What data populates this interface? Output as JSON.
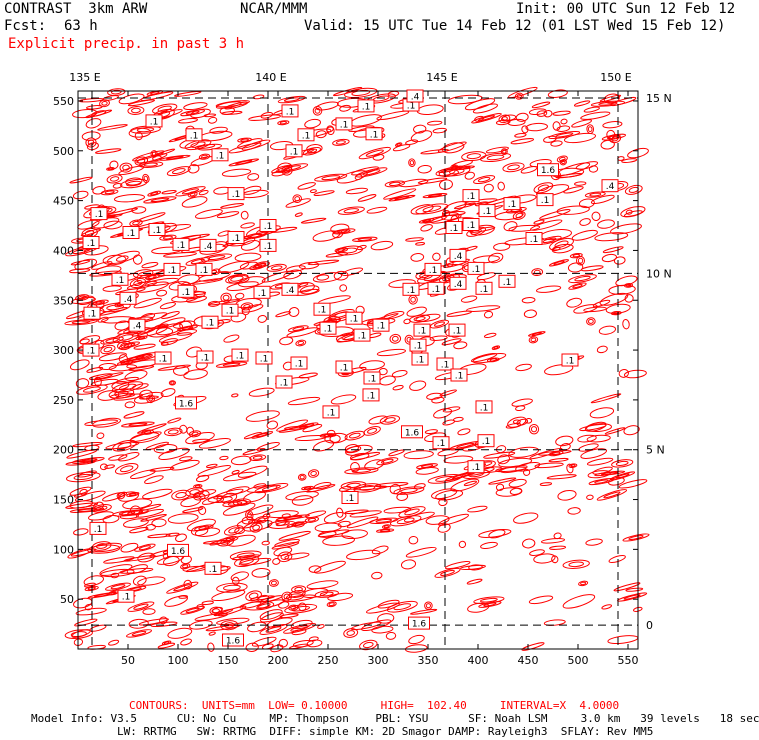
{
  "header": {
    "model": "CONTRAST  3km ARW",
    "center": "NCAR/MMM",
    "init": "Init: 00 UTC Sun 12 Feb 12",
    "fcst_label": "Fcst:",
    "fcst_value": "63 h",
    "valid": "Valid: 15 UTC Tue 14 Feb 12 (01 LST Wed 15 Feb 12)",
    "field": "Explicit precip. in past 3 h"
  },
  "footer": {
    "contours": "CONTOURS:  UNITS=mm  LOW= 0.10000     HIGH=  102.40     INTERVAL=X  4.0000",
    "model_info_line1": "Model Info: V3.5      CU: No Cu     MP: Thompson    PBL: YSU      SF: Noah LSM     3.0 km   39 levels   18 sec",
    "model_info_line2": "LW: RRTMG   SW: RRTMG  DIFF: simple KM: 2D Smagor DAMP: Rayleigh3  SFLAY: Rev MM5"
  },
  "colors": {
    "contour": "#ff0000",
    "text": "#000000",
    "background": "#ffffff"
  },
  "chart_data": {
    "type": "contour-map",
    "title": "Explicit precip. in past 3 h",
    "units": "mm",
    "contour_levels": {
      "low": 0.1,
      "high": 102.4,
      "interval": "X 4.0"
    },
    "grid_x_range": [
      0,
      560
    ],
    "grid_y_range": [
      0,
      560
    ],
    "x_ticks": [
      50,
      100,
      150,
      200,
      250,
      300,
      350,
      400,
      450,
      500,
      550
    ],
    "y_ticks": [
      50,
      100,
      150,
      200,
      250,
      300,
      350,
      400,
      450,
      500,
      550
    ],
    "lon_labels": [
      {
        "label": "135 E",
        "grid_x": 7
      },
      {
        "label": "140 E",
        "grid_x": 193
      },
      {
        "label": "145 E",
        "grid_x": 364
      },
      {
        "label": "150 E",
        "grid_x": 538
      }
    ],
    "lat_labels": [
      {
        "label": "15 N",
        "grid_y": 553
      },
      {
        "label": "10 N",
        "grid_y": 377
      },
      {
        "label": "5 N",
        "grid_y": 200
      },
      {
        "label": "0",
        "grid_y": 24
      }
    ],
    "meridians_grid_x": [
      14,
      190,
      367,
      540
    ],
    "parallels_grid_y": [
      24,
      200,
      377,
      553
    ],
    "contour_labels": [
      {
        "text": ".1",
        "gx": 76,
        "gy": 530
      },
      {
        "text": ".1",
        "gx": 116,
        "gy": 516
      },
      {
        "text": ".1",
        "gx": 142,
        "gy": 496
      },
      {
        "text": ".1",
        "gx": 158,
        "gy": 457
      },
      {
        "text": ".1",
        "gx": 212,
        "gy": 540
      },
      {
        "text": ".1",
        "gx": 228,
        "gy": 516
      },
      {
        "text": ".1",
        "gx": 216,
        "gy": 500
      },
      {
        "text": ".1",
        "gx": 266,
        "gy": 527
      },
      {
        "text": ".1",
        "gx": 296,
        "gy": 517
      },
      {
        "text": ".1",
        "gx": 288,
        "gy": 545
      },
      {
        "text": ".1",
        "gx": 333,
        "gy": 546
      },
      {
        "text": ".4",
        "gx": 337,
        "gy": 555
      },
      {
        "text": ".1",
        "gx": 21,
        "gy": 437
      },
      {
        "text": ".1",
        "gx": 13,
        "gy": 408
      },
      {
        "text": ".1",
        "gx": 79,
        "gy": 421
      },
      {
        "text": ".1",
        "gx": 103,
        "gy": 406
      },
      {
        "text": ".4",
        "gx": 130,
        "gy": 405
      },
      {
        "text": ".1",
        "gx": 158,
        "gy": 413
      },
      {
        "text": ".1",
        "gx": 190,
        "gy": 405
      },
      {
        "text": ".1",
        "gx": 190,
        "gy": 425
      },
      {
        "text": ".1",
        "gx": 53,
        "gy": 418
      },
      {
        "text": ".1",
        "gx": 94,
        "gy": 381
      },
      {
        "text": ".1",
        "gx": 126,
        "gy": 381
      },
      {
        "text": ".1",
        "gx": 42,
        "gy": 371
      },
      {
        "text": ".1",
        "gx": 108,
        "gy": 359
      },
      {
        "text": ".1",
        "gx": 184,
        "gy": 358
      },
      {
        "text": ".4",
        "gx": 212,
        "gy": 361
      },
      {
        "text": ".1",
        "gx": 152,
        "gy": 340
      },
      {
        "text": ".1",
        "gx": 132,
        "gy": 328
      },
      {
        "text": ".4",
        "gx": 50,
        "gy": 352
      },
      {
        "text": ".4",
        "gx": 59,
        "gy": 325
      },
      {
        "text": ".1",
        "gx": 14,
        "gy": 337
      },
      {
        "text": ".1",
        "gx": 244,
        "gy": 341
      },
      {
        "text": ".1",
        "gx": 276,
        "gy": 332
      },
      {
        "text": ".1",
        "gx": 250,
        "gy": 322
      },
      {
        "text": ".1",
        "gx": 303,
        "gy": 325
      },
      {
        "text": ".1",
        "gx": 284,
        "gy": 315
      },
      {
        "text": ".1",
        "gx": 344,
        "gy": 320
      },
      {
        "text": ".1",
        "gx": 333,
        "gy": 361
      },
      {
        "text": ".1",
        "gx": 358,
        "gy": 362
      },
      {
        "text": ".4",
        "gx": 380,
        "gy": 367
      },
      {
        "text": ".1",
        "gx": 355,
        "gy": 381
      },
      {
        "text": ".1",
        "gx": 398,
        "gy": 382
      },
      {
        "text": ".4",
        "gx": 380,
        "gy": 395
      },
      {
        "text": ".1",
        "gx": 376,
        "gy": 423
      },
      {
        "text": ".1",
        "gx": 393,
        "gy": 426
      },
      {
        "text": ".1",
        "gx": 409,
        "gy": 440
      },
      {
        "text": ".1",
        "gx": 434,
        "gy": 447
      },
      {
        "text": ".1",
        "gx": 393,
        "gy": 455
      },
      {
        "text": ".1",
        "gx": 467,
        "gy": 451
      },
      {
        "text": ".1",
        "gx": 456,
        "gy": 412
      },
      {
        "text": ".1",
        "gx": 406,
        "gy": 362
      },
      {
        "text": ".1",
        "gx": 429,
        "gy": 369
      },
      {
        "text": "1.6",
        "gx": 470,
        "gy": 481
      },
      {
        "text": ".4",
        "gx": 532,
        "gy": 465
      },
      {
        "text": ".1",
        "gx": 85,
        "gy": 292
      },
      {
        "text": ".1",
        "gx": 127,
        "gy": 293
      },
      {
        "text": ".1",
        "gx": 162,
        "gy": 295
      },
      {
        "text": ".1",
        "gx": 186,
        "gy": 292
      },
      {
        "text": ".1",
        "gx": 13,
        "gy": 300
      },
      {
        "text": ".1",
        "gx": 266,
        "gy": 283
      },
      {
        "text": ".1",
        "gx": 294,
        "gy": 272
      },
      {
        "text": ".1",
        "gx": 206,
        "gy": 268
      },
      {
        "text": ".1",
        "gx": 221,
        "gy": 287
      },
      {
        "text": ".1",
        "gx": 340,
        "gy": 305
      },
      {
        "text": ".1",
        "gx": 342,
        "gy": 291
      },
      {
        "text": ".1",
        "gx": 367,
        "gy": 286
      },
      {
        "text": ".1",
        "gx": 381,
        "gy": 275
      },
      {
        "text": ".1",
        "gx": 379,
        "gy": 320
      },
      {
        "text": ".1",
        "gx": 293,
        "gy": 255
      },
      {
        "text": ".1",
        "gx": 253,
        "gy": 238
      },
      {
        "text": ".1",
        "gx": 406,
        "gy": 243
      },
      {
        "text": "1.6",
        "gx": 108,
        "gy": 247
      },
      {
        "text": "1.6",
        "gx": 334,
        "gy": 218
      },
      {
        "text": ".1",
        "gx": 363,
        "gy": 207
      },
      {
        "text": ".1",
        "gx": 408,
        "gy": 209
      },
      {
        "text": ".1",
        "gx": 398,
        "gy": 183
      },
      {
        "text": ".1",
        "gx": 272,
        "gy": 152
      },
      {
        "text": ".1",
        "gx": 492,
        "gy": 290
      },
      {
        "text": ".1",
        "gx": 20,
        "gy": 121
      },
      {
        "text": "1.6",
        "gx": 100,
        "gy": 99
      },
      {
        "text": ".1",
        "gx": 135,
        "gy": 81
      },
      {
        "text": ".1",
        "gx": 48,
        "gy": 53
      },
      {
        "text": "1.6",
        "gx": 341,
        "gy": 26
      },
      {
        "text": "1.6",
        "gx": 155,
        "gy": 9
      }
    ]
  }
}
